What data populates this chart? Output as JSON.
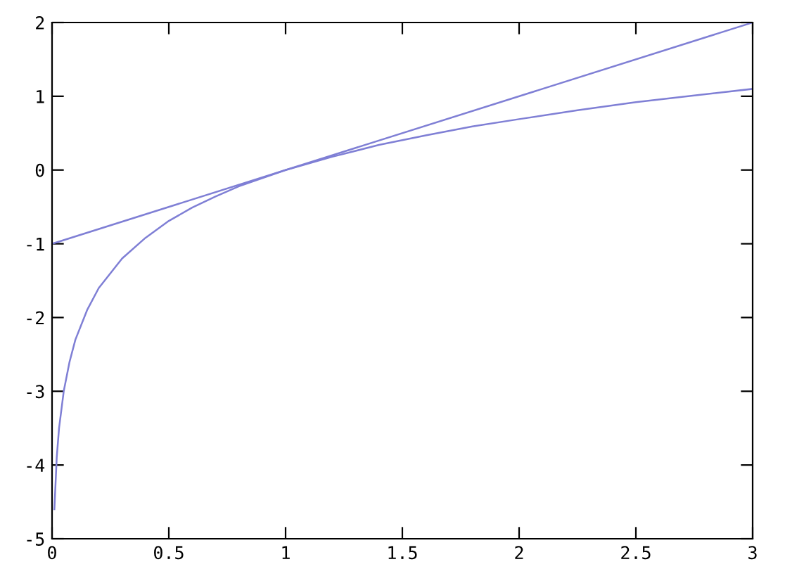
{
  "chart_data": {
    "type": "line",
    "xlim": [
      0,
      3
    ],
    "ylim": [
      -5,
      2
    ],
    "xticks": [
      0,
      0.5,
      1,
      1.5,
      2,
      2.5,
      3
    ],
    "yticks": [
      -5,
      -4,
      -3,
      -2,
      -1,
      0,
      1,
      2
    ],
    "grid": false,
    "legend": false,
    "marker": "none",
    "line_style": "solid",
    "series": [
      {
        "color": "#7f7fd5",
        "x": [
          0.01,
          0.02,
          0.03,
          0.05,
          0.075,
          0.1,
          0.15,
          0.2,
          0.3,
          0.4,
          0.5,
          0.6,
          0.7,
          0.8,
          0.9,
          1,
          1.2,
          1.4,
          1.6,
          1.8,
          2,
          2.25,
          2.5,
          2.75,
          3
        ],
        "values": [
          -4.6,
          -3.9,
          -3.5,
          -3.0,
          -2.6,
          -2.3,
          -1.9,
          -1.6,
          -1.2,
          -0.92,
          -0.69,
          -0.51,
          -0.36,
          -0.22,
          -0.11,
          0,
          0.18,
          0.34,
          0.47,
          0.59,
          0.69,
          0.81,
          0.92,
          1.01,
          1.1
        ]
      },
      {
        "color": "#7f7fd5",
        "x": [
          0,
          3
        ],
        "values": [
          -1,
          2
        ]
      }
    ]
  }
}
